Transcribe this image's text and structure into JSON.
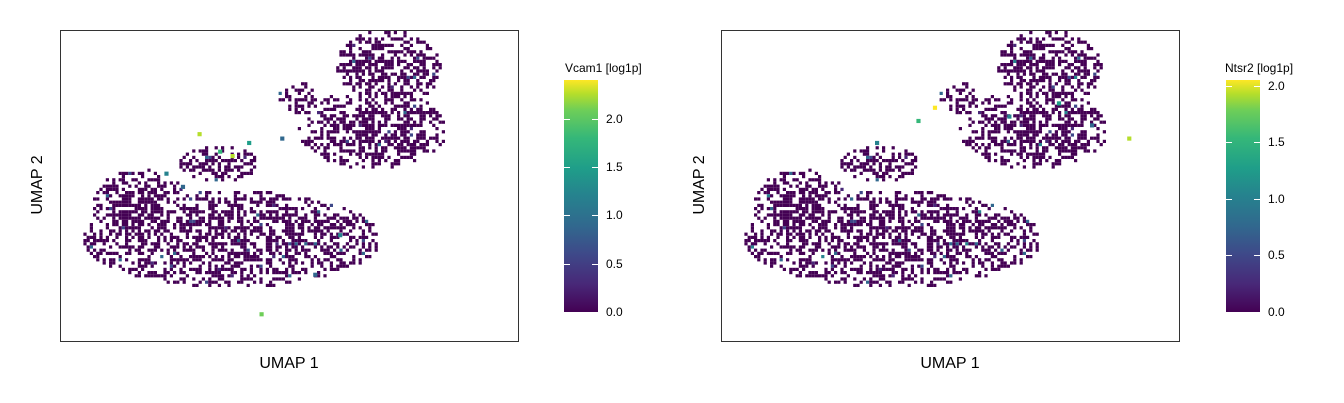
{
  "chart_data": [
    {
      "type": "scatter",
      "title": "",
      "xlabel": "UMAP 1",
      "ylabel": "UMAP 2",
      "colorbar": {
        "title": "Vcam1 [log1p]",
        "ticks": [
          "0.0",
          "0.5",
          "1.0",
          "1.5",
          "2.0"
        ],
        "tick_values": [
          0.0,
          0.5,
          1.0,
          1.5,
          2.0
        ],
        "range": [
          0.0,
          2.4
        ],
        "colormap": "viridis"
      },
      "grid": false,
      "highlights": [
        {
          "x": 3.0,
          "y": 4.4,
          "value": 2.0
        },
        {
          "x": 3.5,
          "y": 4.0,
          "value": 1.6
        },
        {
          "x": 3.8,
          "y": 3.9,
          "value": 2.2
        },
        {
          "x": 4.2,
          "y": 4.2,
          "value": 1.4
        },
        {
          "x": 2.2,
          "y": 3.5,
          "value": 1.1
        },
        {
          "x": 2.6,
          "y": 3.2,
          "value": 0.9
        },
        {
          "x": 5.0,
          "y": 4.3,
          "value": 0.8
        },
        {
          "x": 6.4,
          "y": 2.1,
          "value": 1.0
        },
        {
          "x": 5.8,
          "y": 1.2,
          "value": 0.9
        },
        {
          "x": 4.5,
          "y": 0.3,
          "value": 1.8
        }
      ]
    },
    {
      "type": "scatter",
      "title": "",
      "xlabel": "UMAP 1",
      "ylabel": "UMAP 2",
      "colorbar": {
        "title": "Ntsr2 [log1p]",
        "ticks": [
          "0.0",
          "0.5",
          "1.0",
          "1.5",
          "2.0"
        ],
        "tick_values": [
          0.0,
          0.5,
          1.0,
          1.5,
          2.0
        ],
        "range": [
          0.0,
          2.05
        ],
        "colormap": "viridis"
      },
      "grid": false,
      "highlights": [
        {
          "x": 4.8,
          "y": 5.0,
          "value": 2.0
        },
        {
          "x": 4.4,
          "y": 4.7,
          "value": 1.4
        },
        {
          "x": 9.5,
          "y": 4.3,
          "value": 1.9
        },
        {
          "x": 7.8,
          "y": 5.1,
          "value": 1.2
        },
        {
          "x": 6.6,
          "y": 4.8,
          "value": 1.0
        },
        {
          "x": 3.4,
          "y": 4.2,
          "value": 0.9
        },
        {
          "x": 8.6,
          "y": 4.6,
          "value": 0.7
        }
      ]
    }
  ],
  "panels": [
    {
      "colorbar_title": "Vcam1 [log1p]",
      "xlabel": "UMAP 1",
      "ylabel": "UMAP 2"
    },
    {
      "colorbar_title": "Ntsr2 [log1p]",
      "xlabel": "UMAP 1",
      "ylabel": "UMAP 2"
    }
  ]
}
